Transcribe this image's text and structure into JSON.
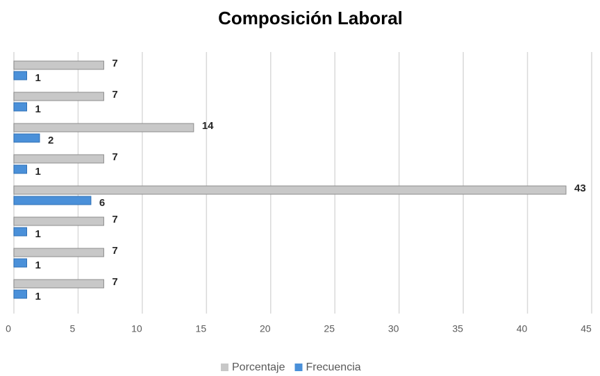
{
  "chart_data": {
    "type": "bar",
    "orientation": "horizontal",
    "title": "Composición Laboral",
    "categories": [
      null,
      null,
      null,
      null,
      null,
      null,
      null,
      null
    ],
    "series": [
      {
        "name": "Porcentaje",
        "color": "#c8c8c8",
        "values": [
          7,
          7,
          14,
          7,
          43,
          7,
          7,
          7
        ]
      },
      {
        "name": "Frecuencia",
        "color": "#4a90d9",
        "values": [
          1,
          1,
          2,
          1,
          6,
          1,
          1,
          1
        ]
      }
    ],
    "xlim": [
      0,
      45
    ],
    "xticks": [
      0,
      5,
      10,
      15,
      20,
      25,
      30,
      35,
      40,
      45
    ],
    "grid": true,
    "legend": "bottom"
  }
}
